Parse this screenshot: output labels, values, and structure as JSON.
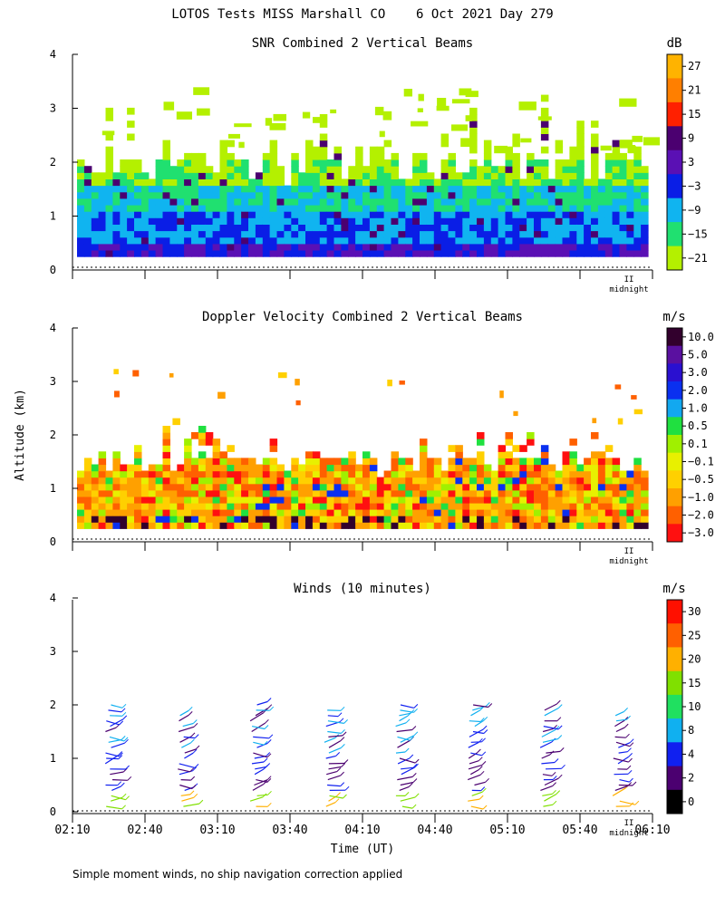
{
  "figure_title": "LOTOS Tests MISS Marshall CO    6 Oct 2021 Day 279",
  "footer_note": "Simple moment winds, no ship navigation correction applied",
  "y_axis_label": "Altitude (km)",
  "x_axis_label": "Time (UT)",
  "x_ticks": [
    "02:10",
    "02:40",
    "03:10",
    "03:40",
    "04:10",
    "04:40",
    "05:10",
    "05:40",
    "06:10"
  ],
  "y_ticks": [
    "0",
    "1",
    "2",
    "3",
    "4"
  ],
  "midnight_label": "midnight",
  "midnight_marker": "II",
  "chart_data": [
    {
      "type": "heatmap",
      "title": "SNR Combined 2 Vertical Beams",
      "units": "dB",
      "xlabel": "Time (UT)",
      "ylabel": "Altitude (km)",
      "xlim": [
        "02:10",
        "06:10"
      ],
      "ylim": [
        0,
        4
      ],
      "colorbar_ticks": [
        "27",
        "21",
        "15",
        "9",
        "3",
        "−3",
        "−9",
        "−15",
        "−21"
      ],
      "colorbar_colors": [
        "#ffb300",
        "#ff7f00",
        "#ff2000",
        "#4b0070",
        "#5a10b4",
        "#0a1ee6",
        "#10b4f0",
        "#20e070",
        "#b4f000"
      ],
      "description_values": {
        "surface_layer_db_range": [
          3,
          9
        ],
        "mid_layer_db_range": [
          -9,
          -3
        ],
        "upper_layer_db_range": [
          -21,
          -15
        ],
        "signal_top_km": 3.3
      }
    },
    {
      "type": "heatmap",
      "title": "Doppler Velocity Combined 2 Vertical Beams",
      "units": "m/s",
      "xlabel": "Time (UT)",
      "ylabel": "Altitude (km)",
      "xlim": [
        "02:10",
        "06:10"
      ],
      "ylim": [
        0,
        4
      ],
      "colorbar_ticks": [
        "10.0",
        "5.0",
        "3.0",
        "2.0",
        "1.0",
        "0.5",
        "0.1",
        "−0.1",
        "−0.5",
        "−1.0",
        "−2.0",
        "−3.0"
      ],
      "colorbar_colors": [
        "#32002d",
        "#5a10a0",
        "#2a10d0",
        "#0a30f0",
        "#12a8f0",
        "#20e040",
        "#a0f000",
        "#e8f000",
        "#ffd000",
        "#ffa000",
        "#ff6000",
        "#ff1010"
      ],
      "description_values": {
        "dominant_velocity_ms": -0.5,
        "signal_top_km": 2.0
      }
    },
    {
      "type": "scatter",
      "title": "Winds (10 minutes)",
      "units": "m/s",
      "xlabel": "Time (UT)",
      "ylabel": "Altitude (km)",
      "xlim": [
        "02:10",
        "06:10"
      ],
      "ylim": [
        0,
        4
      ],
      "colorbar_ticks": [
        "30",
        "25",
        "20",
        "15",
        "10",
        "8",
        "4",
        "2",
        "0"
      ],
      "colorbar_colors": [
        "#ff1000",
        "#ff6000",
        "#ffb000",
        "#80e000",
        "#20e060",
        "#10b0f0",
        "#1020f0",
        "#4b0070",
        "#000000"
      ],
      "profile_times": [
        "02:25",
        "02:55",
        "03:25",
        "03:55",
        "04:25",
        "04:55",
        "05:25",
        "05:55"
      ],
      "profile_top_km": [
        2.1,
        1.85,
        2.1,
        1.95,
        2.1,
        2.1,
        1.95,
        1.85
      ]
    }
  ]
}
